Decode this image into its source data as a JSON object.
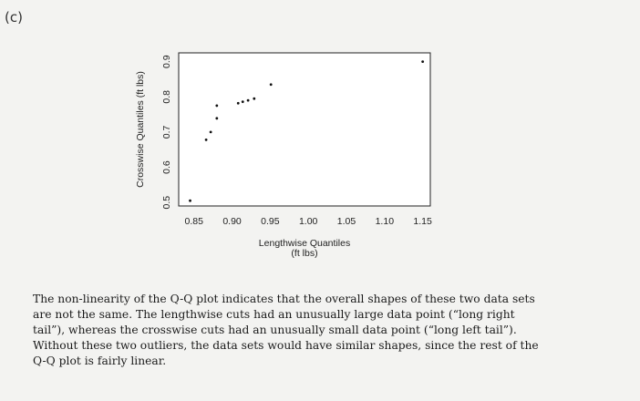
{
  "figure": {
    "part_label": "(c)"
  },
  "chart_data": {
    "type": "scatter",
    "title": "",
    "xlabel": "Lengthwise Quantiles",
    "xlabel_units": "(ft lbs)",
    "ylabel": "Crosswise Quantiles (ft lbs)",
    "xlim": [
      0.83,
      1.16
    ],
    "ylim": [
      0.49,
      0.925
    ],
    "x_ticks": [
      0.85,
      0.9,
      0.95,
      1.0,
      1.05,
      1.1,
      1.15
    ],
    "x_tick_labels": [
      "0.85",
      "0.90",
      "0.95",
      "1.00",
      "1.05",
      "1.10",
      "1.15"
    ],
    "y_ticks": [
      0.5,
      0.6,
      0.7,
      0.8,
      0.9
    ],
    "y_tick_labels": [
      "0.5",
      "0.6",
      "0.7",
      "0.8",
      "0.9"
    ],
    "grid": false,
    "points": [
      {
        "x": 0.845,
        "y": 0.505
      },
      {
        "x": 0.866,
        "y": 0.678
      },
      {
        "x": 0.872,
        "y": 0.7
      },
      {
        "x": 0.88,
        "y": 0.739
      },
      {
        "x": 0.88,
        "y": 0.775
      },
      {
        "x": 0.908,
        "y": 0.782
      },
      {
        "x": 0.914,
        "y": 0.786
      },
      {
        "x": 0.921,
        "y": 0.79
      },
      {
        "x": 0.929,
        "y": 0.795
      },
      {
        "x": 0.951,
        "y": 0.835
      },
      {
        "x": 1.15,
        "y": 0.9
      }
    ]
  },
  "caption": {
    "lines": [
      "The non-linearity of the Q-Q plot indicates that the overall shapes of these two data sets",
      "are not the same. The lengthwise cuts had an unusually large data point (“long right",
      "tail”), whereas the crosswise cuts had an unusually small data point (“long left tail”).",
      "Without these two outliers, the data sets would have similar shapes, since the rest of the",
      "Q-Q plot is fairly linear."
    ]
  }
}
